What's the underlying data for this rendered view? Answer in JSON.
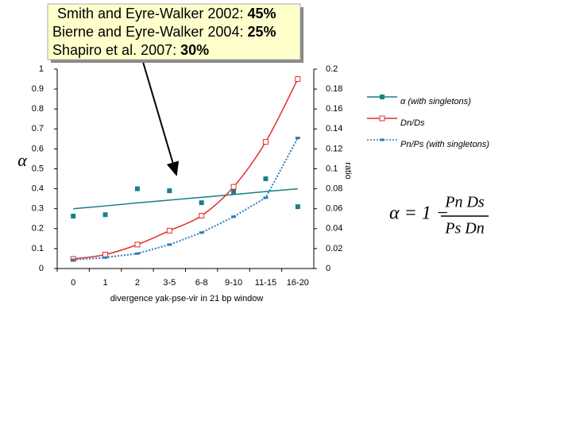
{
  "annotations": [
    {
      "text": "Smith and Eyre-Walker 2002:",
      "value": "45%"
    },
    {
      "text": "Bierne and Eyre-Walker 2004:",
      "value": "25%"
    },
    {
      "text": "Shapiro et al. 2007:",
      "value": "30%"
    }
  ],
  "formula": {
    "lhs": "α = 1 −",
    "numerator": "Pn Ds",
    "denominator": "Ps Dn"
  },
  "chart_data": {
    "type": "line",
    "x_label": "divergence yak-pse-vir in 21 bp window",
    "y_label": "α",
    "y2_label": "ratio",
    "categories": [
      "0",
      "1",
      "2",
      "3-5",
      "6-8",
      "9-10",
      "11-15",
      "16-20"
    ],
    "ylim": [
      0,
      1
    ],
    "yticks": [
      0,
      0.1,
      0.2,
      0.3,
      0.4,
      0.5,
      0.6,
      0.7,
      0.8,
      0.9,
      1
    ],
    "y2lim": [
      0,
      0.2
    ],
    "y2ticks": [
      0,
      0.02,
      0.04,
      0.06,
      0.08,
      0.1,
      0.12,
      0.14,
      0.16,
      0.18,
      0.2
    ],
    "grid": false,
    "legend": "right",
    "series": [
      {
        "name": "α (with singletons)",
        "color": "#1a7f86",
        "marker": "square-filled",
        "line": "none",
        "values": [
          0.263,
          0.27,
          0.4,
          0.39,
          0.33,
          0.385,
          0.45,
          0.31
        ]
      },
      {
        "color": "#1a7f86",
        "marker": "none",
        "line": "solid",
        "values": [
          0.3,
          0.314,
          0.329,
          0.343,
          0.357,
          0.371,
          0.386,
          0.4
        ]
      },
      {
        "name": "Dn/Ds",
        "color": "#e0302a",
        "marker": "square-open",
        "line": "smooth",
        "axis": "y2",
        "values": [
          0.0096,
          0.014,
          0.024,
          0.038,
          0.053,
          0.082,
          0.127,
          0.19
        ]
      },
      {
        "name": "Pn/Ps (with singletons)",
        "color": "#2a7fc0",
        "marker": "dash",
        "line": "dotted",
        "axis": "y2",
        "values": [
          0.0088,
          0.011,
          0.015,
          0.024,
          0.036,
          0.052,
          0.071,
          0.131
        ]
      }
    ]
  }
}
